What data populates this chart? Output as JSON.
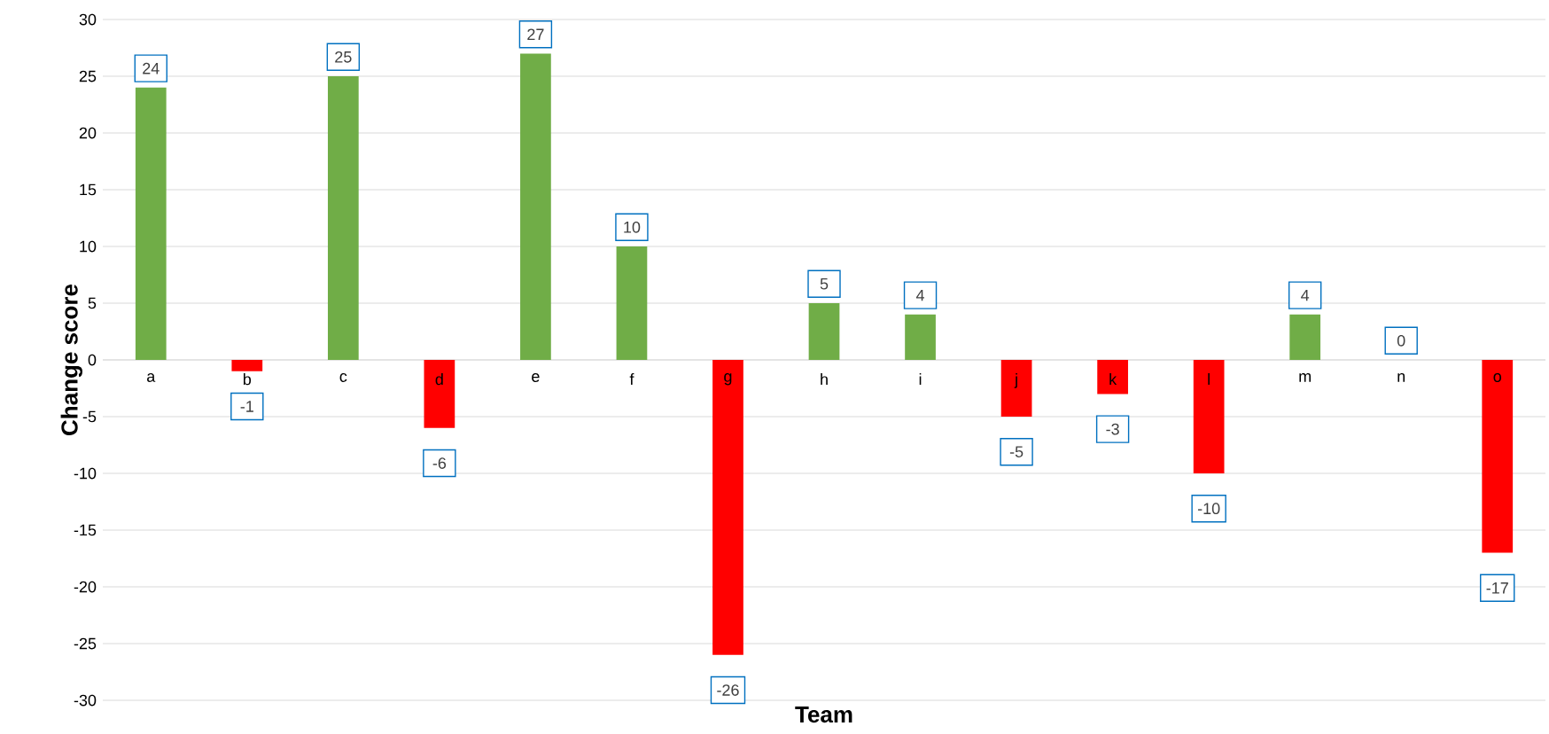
{
  "chart_data": {
    "type": "bar",
    "xlabel": "Team",
    "ylabel": "Change score",
    "categories": [
      "a",
      "b",
      "c",
      "d",
      "e",
      "f",
      "g",
      "h",
      "i",
      "j",
      "k",
      "l",
      "m",
      "n",
      "o"
    ],
    "values": [
      24,
      -1,
      25,
      -6,
      27,
      10,
      -26,
      5,
      4,
      -5,
      -3,
      -10,
      4,
      0,
      -17
    ],
    "colors": [
      "#70ad47",
      "#ff0000",
      "#70ad47",
      "#ff0000",
      "#70ad47",
      "#70ad47",
      "#ff0000",
      "#70ad47",
      "#70ad47",
      "#ff0000",
      "#ff0000",
      "#ff0000",
      "#70ad47",
      "#70ad47",
      "#ff0000"
    ],
    "ylim": [
      -30,
      30
    ],
    "yticks": [
      -30,
      -25,
      -20,
      -15,
      -10,
      -5,
      0,
      5,
      10,
      15,
      20,
      25,
      30
    ],
    "grid": "y",
    "data_labels": true
  }
}
